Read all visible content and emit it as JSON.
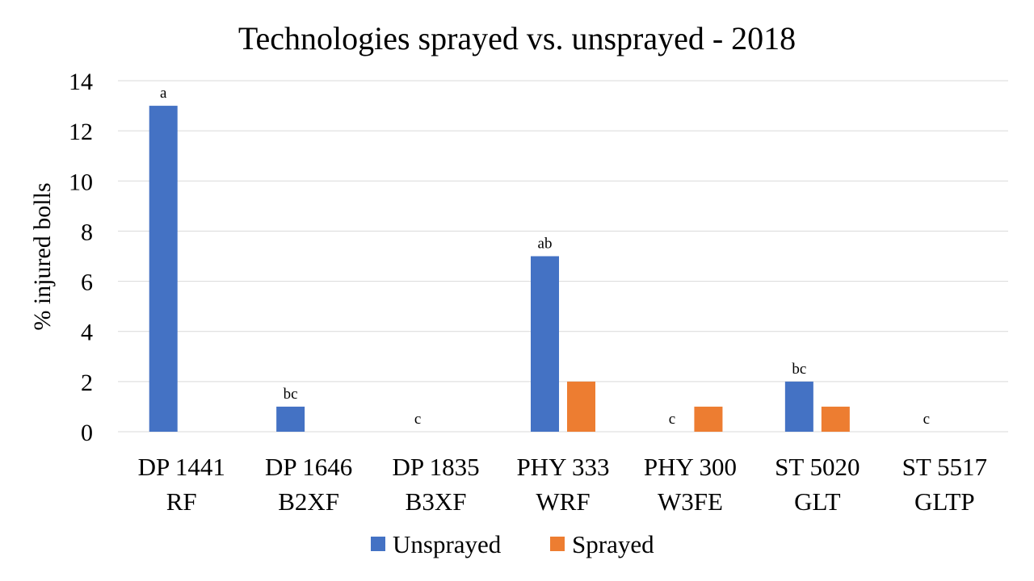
{
  "chart_data": {
    "type": "bar",
    "title": "Technologies sprayed vs. unsprayed - 2018",
    "xlabel": "",
    "ylabel": "% injured bolls",
    "ylim": [
      0,
      14
    ],
    "yticks": [
      0,
      2,
      4,
      6,
      8,
      10,
      12,
      14
    ],
    "grid": true,
    "legend_position": "bottom",
    "categories": [
      [
        "DP 1441",
        "RF"
      ],
      [
        "DP 1646",
        "B2XF"
      ],
      [
        "DP 1835",
        "B3XF"
      ],
      [
        "PHY 333",
        "WRF"
      ],
      [
        "PHY 300",
        "W3FE"
      ],
      [
        "ST 5020",
        "GLT"
      ],
      [
        "ST 5517",
        "GLTP"
      ]
    ],
    "series": [
      {
        "name": "Unsprayed",
        "color": "#4472c4",
        "values": [
          13,
          1,
          0,
          7,
          0,
          2,
          0
        ]
      },
      {
        "name": "Sprayed",
        "color": "#ed7d31",
        "values": [
          0,
          0,
          0,
          2,
          1,
          1,
          0
        ]
      }
    ],
    "annotations": [
      "a",
      "bc",
      "c",
      "ab",
      "c",
      "bc",
      "c"
    ]
  }
}
